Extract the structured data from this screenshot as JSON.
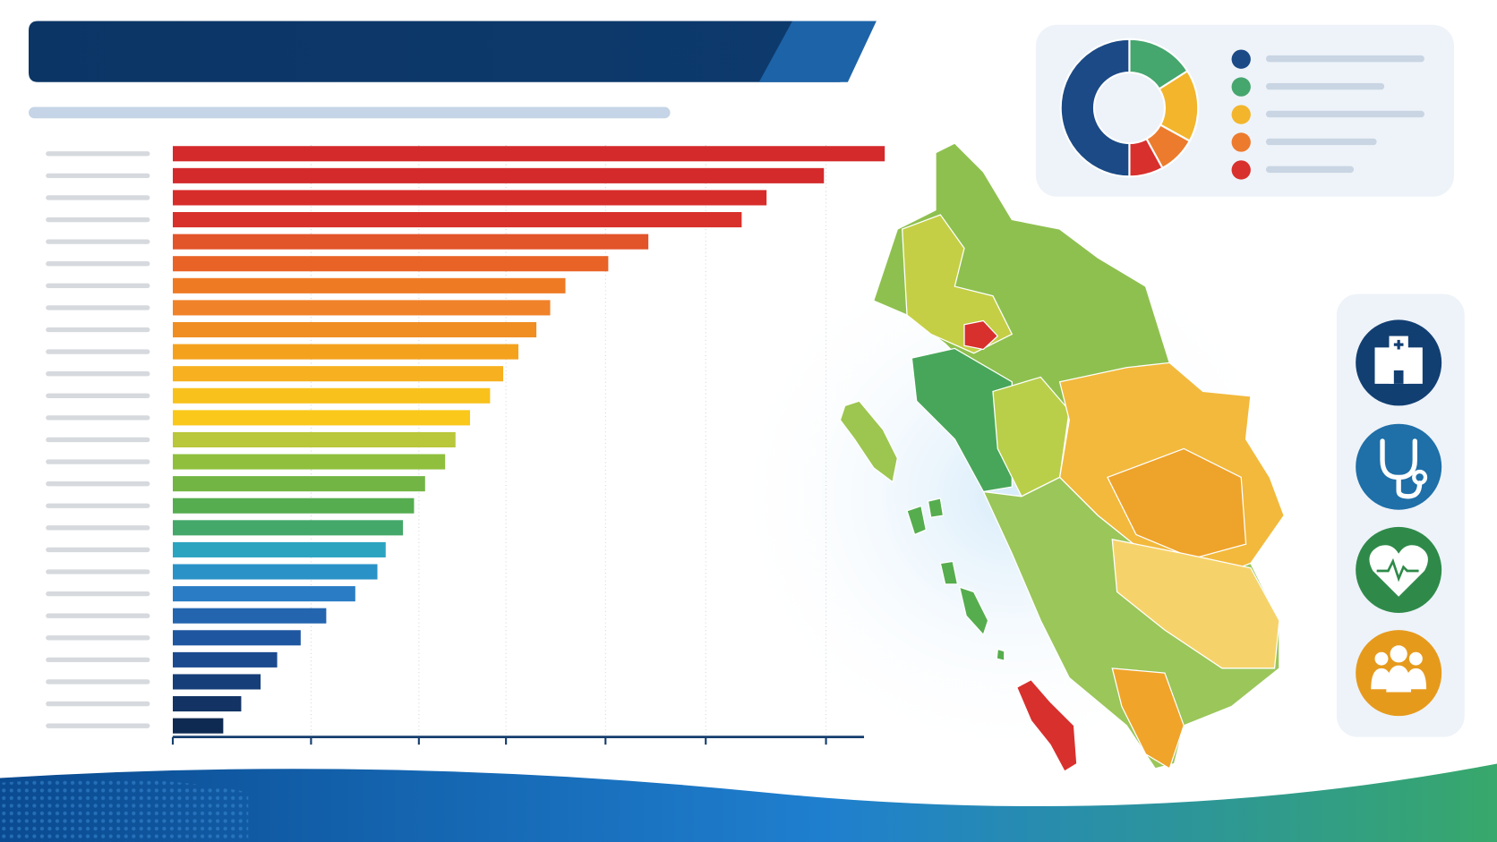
{
  "chart_data": [
    {
      "type": "bar",
      "orientation": "horizontal",
      "categories": [
        null,
        null,
        null,
        null,
        null,
        null,
        null,
        null,
        null,
        null,
        null,
        null,
        null,
        null,
        null,
        null,
        null,
        null,
        null,
        null,
        null,
        null,
        null,
        null,
        null,
        null,
        null
      ],
      "values": [
        103.0,
        94.2,
        85.9,
        82.3,
        68.8,
        63.0,
        56.8,
        54.6,
        52.6,
        50.0,
        47.8,
        45.9,
        43.0,
        40.9,
        39.4,
        36.5,
        34.9,
        33.3,
        30.8,
        29.6,
        26.4,
        22.2,
        18.5,
        15.1,
        12.7,
        9.9,
        7.3
      ],
      "colors": [
        "#d42a2c",
        "#d42a2c",
        "#d72d2a",
        "#d8302b",
        "#e2542a",
        "#e96326",
        "#ef7a24",
        "#f0822a",
        "#f08e24",
        "#f4a21e",
        "#f7b01f",
        "#f8c11c",
        "#f9c81a",
        "#b9c73a",
        "#90bf3d",
        "#72b544",
        "#55ad4f",
        "#44a86a",
        "#2ba4c0",
        "#2a92c6",
        "#2a7dc4",
        "#2365ae",
        "#1e56a0",
        "#1b4a8f",
        "#163e78",
        "#123363",
        "#0f2a52"
      ],
      "xlim": [
        0,
        100
      ],
      "xticks": [
        0,
        20.0,
        35.6,
        48.2,
        62.6,
        77.1,
        94.5
      ],
      "grid": true
    },
    {
      "type": "pie",
      "donut": true,
      "categories": [
        null,
        null,
        null,
        null,
        null
      ],
      "values": [
        50,
        16,
        17,
        9,
        8
      ],
      "colors": [
        "#1b4a86",
        "#45a66e",
        "#f2b52c",
        "#ec7b2e",
        "#d8302d"
      ]
    }
  ]
}
